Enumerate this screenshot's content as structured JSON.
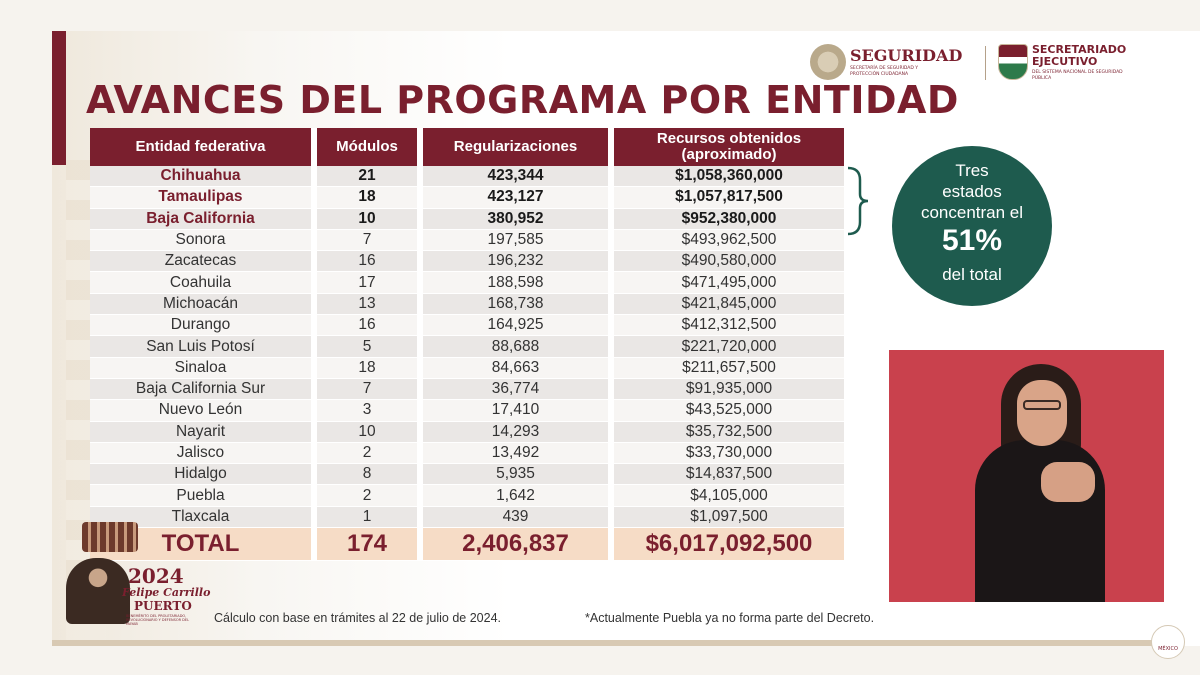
{
  "header": {
    "title": "AVANCES DEL PROGRAMA POR ENTIDAD",
    "logo_seguridad": {
      "name": "SEGURIDAD",
      "subtitle": "SECRETARÍA DE SEGURIDAD Y PROTECCIÓN CIUDADANA"
    },
    "logo_secretariado": {
      "name_line1": "SECRETARIADO",
      "name_line2": "EJECUTIVO",
      "subtitle": "DEL SISTEMA NACIONAL DE SEGURIDAD PÚBLICA"
    }
  },
  "table": {
    "headers": [
      "Entidad federativa",
      "Módulos",
      "Regularizaciones",
      "Recursos obtenidos (aproximado)"
    ],
    "rows": [
      [
        "Chihuahua",
        "21",
        "423,344",
        "$1,058,360,000"
      ],
      [
        "Tamaulipas",
        "18",
        "423,127",
        "$1,057,817,500"
      ],
      [
        "Baja California",
        "10",
        "380,952",
        "$952,380,000"
      ],
      [
        "Sonora",
        "7",
        "197,585",
        "$493,962,500"
      ],
      [
        "Zacatecas",
        "16",
        "196,232",
        "$490,580,000"
      ],
      [
        "Coahuila",
        "17",
        "188,598",
        "$471,495,000"
      ],
      [
        "Michoacán",
        "13",
        "168,738",
        "$421,845,000"
      ],
      [
        "Durango",
        "16",
        "164,925",
        "$412,312,500"
      ],
      [
        "San Luis Potosí",
        "5",
        "88,688",
        "$221,720,000"
      ],
      [
        "Sinaloa",
        "18",
        "84,663",
        "$211,657,500"
      ],
      [
        "Baja California Sur",
        "7",
        "36,774",
        "$91,935,000"
      ],
      [
        "Nuevo León",
        "3",
        "17,410",
        "$43,525,000"
      ],
      [
        "Nayarit",
        "10",
        "14,293",
        "$35,732,500"
      ],
      [
        "Jalisco",
        "2",
        "13,492",
        "$33,730,000"
      ],
      [
        "Hidalgo",
        "8",
        "5,935",
        "$14,837,500"
      ],
      [
        "Puebla",
        "2",
        "1,642",
        "$4,105,000"
      ],
      [
        "Tlaxcala",
        "1",
        "439",
        "$1,097,500"
      ]
    ],
    "total": [
      "TOTAL",
      "174",
      "2,406,837",
      "$6,017,092,500"
    ]
  },
  "callout": {
    "line1": "Tres",
    "line2": "estados",
    "line3": "concentran el",
    "percent": "51%",
    "line4": "del total",
    "color": "#1e5b4e"
  },
  "footer": {
    "logo_year": "2024",
    "logo_name": "Felipe Carrillo",
    "logo_surname": "PUERTO",
    "logo_subtitle": "BENEMÉRITO DEL PROLETARIADO, REVOLUCIONARIO Y DEFENSOR DEL MAYAB",
    "note_left": "Cálculo con base en trámites al 22 de julio de 2024.",
    "note_right": "*Actualmente Puebla ya no forma parte del Decreto.",
    "gov_logo_text": "MÉXICO"
  },
  "colors": {
    "brand_guinda": "#7a1f2e",
    "total_row": "#f6dcc6",
    "row_odd": "#eae7e5",
    "row_even": "#f7f5f3"
  }
}
